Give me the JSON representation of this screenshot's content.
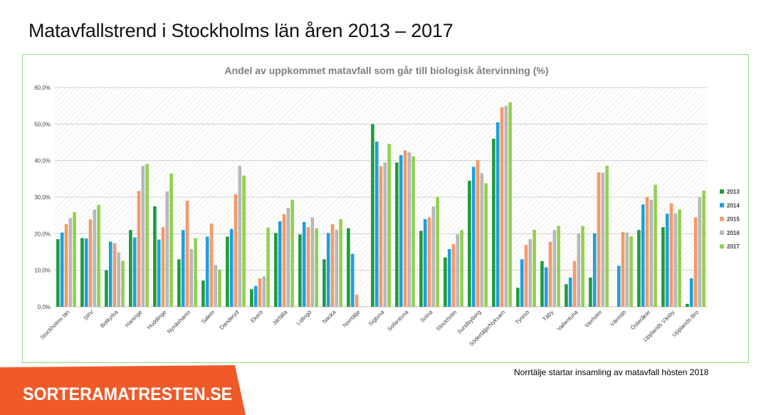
{
  "slide_title": "Matavfallstrend i Stockholms län åren 2013 – 2017",
  "footnote": "Norrtälje startar insamling av matavfall hösten 2018",
  "brand_text": "SORTERAMATRESTEN.SE",
  "colors": {
    "2013": "#1e9a41",
    "2014": "#1ea0dc",
    "2015": "#f49a6a",
    "2016": "#b8b8b8",
    "2017": "#92d050",
    "frame_border": "#9bd17a",
    "banner": "#f05a28"
  },
  "chart_data": {
    "type": "bar",
    "title": "Andel av uppkommet matavfall som går till biologisk återvinning (%)",
    "xlabel": "",
    "ylabel": "",
    "ylim": [
      0,
      60
    ],
    "yticks": [
      "0,0%",
      "10,0%",
      "20,0%",
      "30,0%",
      "40,0%",
      "50,0%",
      "60,0%"
    ],
    "grid": true,
    "legend_position": "right",
    "categories": [
      "Stockholms län",
      "SRV",
      "Botkyrka",
      "Haninge",
      "Huddinge",
      "Nynäshamn",
      "Salem",
      "Danderyd",
      "Ekerö",
      "Järfälla",
      "Lidingö",
      "Nacka",
      "Norrtälje",
      "Sigtuna",
      "Sollentuna",
      "Solna",
      "Stockholm",
      "Sundbyberg",
      "Södertälje/Nykvarn",
      "Tyresö",
      "Täby",
      "Vallentuna",
      "Vaxholm",
      "Värmdö",
      "Österåker",
      "Upplands Väsby",
      "Upplands-Bro"
    ],
    "series": [
      {
        "name": "2013",
        "values": [
          18.5,
          18.8,
          10.0,
          21.0,
          27.5,
          13.0,
          7.2,
          19.2,
          4.8,
          20.2,
          19.8,
          13.0,
          21.5,
          50.0,
          39.5,
          20.8,
          13.5,
          34.5,
          46.0,
          5.2,
          12.5,
          6.2,
          8.0,
          0,
          21.0,
          21.8,
          0.8
        ]
      },
      {
        "name": "2014",
        "values": [
          20.3,
          18.7,
          17.8,
          19.0,
          18.4,
          21.0,
          19.2,
          21.3,
          5.7,
          23.4,
          23.2,
          20.2,
          14.5,
          45.2,
          41.5,
          24.0,
          15.8,
          38.3,
          50.5,
          13.0,
          10.8,
          8.0,
          20.1,
          11.2,
          28.0,
          25.5,
          7.8
        ]
      },
      {
        "name": "2015",
        "values": [
          22.6,
          23.9,
          17.4,
          31.7,
          21.8,
          29.0,
          22.8,
          30.8,
          7.8,
          25.4,
          21.8,
          22.6,
          3.3,
          38.5,
          42.8,
          24.5,
          17.2,
          40.2,
          54.6,
          17.0,
          17.8,
          12.5,
          36.8,
          20.5,
          30.0,
          28.3,
          24.5
        ]
      },
      {
        "name": "2016",
        "values": [
          24.3,
          26.6,
          14.9,
          38.6,
          31.6,
          15.8,
          11.5,
          38.6,
          8.3,
          27.0,
          24.5,
          21.1,
          0,
          39.5,
          42.3,
          27.5,
          19.9,
          36.6,
          55.0,
          18.5,
          21.0,
          20.1,
          36.7,
          20.3,
          29.3,
          25.6,
          30.0
        ]
      },
      {
        "name": "2017",
        "values": [
          25.9,
          27.9,
          12.6,
          39.1,
          36.5,
          18.8,
          10.2,
          35.9,
          21.7,
          29.3,
          21.5,
          24.0,
          0,
          44.6,
          41.2,
          30.1,
          21.0,
          33.8,
          56.0,
          21.1,
          22.1,
          22.1,
          38.6,
          19.3,
          33.4,
          26.6,
          31.8
        ]
      }
    ]
  }
}
